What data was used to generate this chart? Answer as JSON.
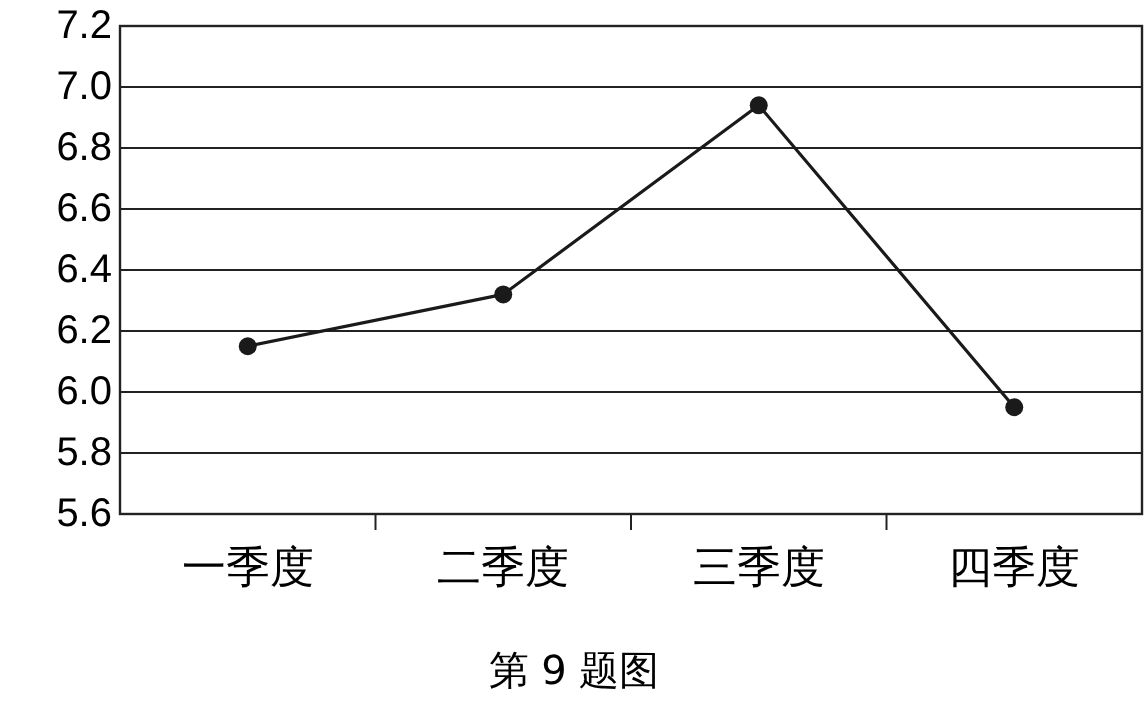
{
  "chart_data": {
    "type": "line",
    "categories": [
      "一季度",
      "二季度",
      "三季度",
      "四季度"
    ],
    "series": [
      {
        "color": "#1a1a1a",
        "values": [
          6.15,
          6.32,
          6.94,
          5.95
        ]
      }
    ],
    "ylim": [
      5.6,
      7.2
    ],
    "yticks": [
      5.6,
      5.8,
      {
        "value": 6,
        "label": "6.0"
      },
      6.2,
      6.4,
      6.6,
      6.8,
      {
        "value": 7,
        "label": "7.0"
      },
      7.2
    ],
    "grid": "y",
    "marker": "circle",
    "line_style": "solid",
    "annotations": [
      "第 9 题图"
    ]
  }
}
